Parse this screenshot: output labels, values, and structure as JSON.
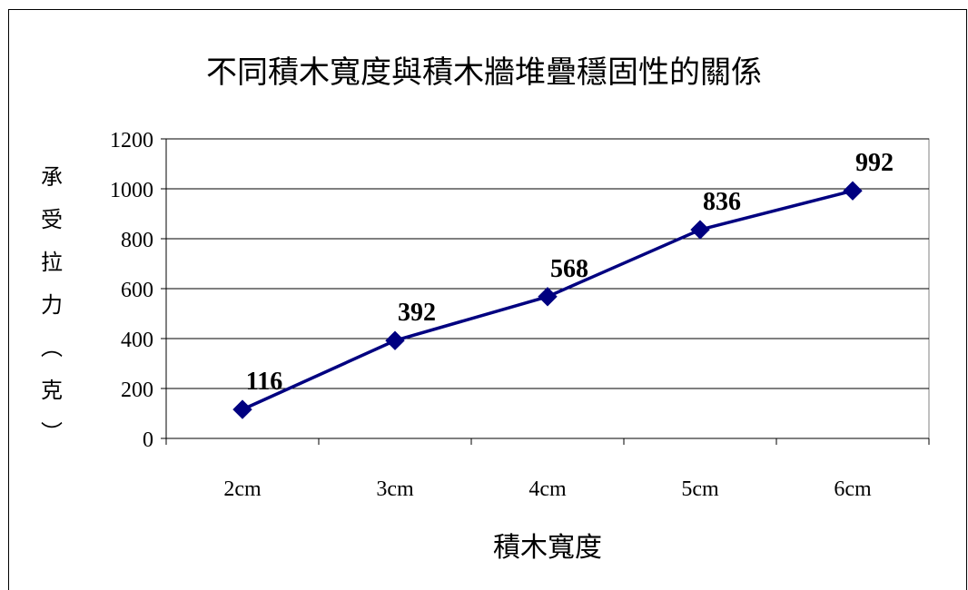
{
  "chart_data": {
    "type": "line",
    "title": "不同積木寬度與積木牆堆疊穩固性的關係",
    "xlabel": "積木寬度",
    "ylabel": "承受拉力（克）",
    "categories": [
      "2cm",
      "3cm",
      "4cm",
      "5cm",
      "6cm"
    ],
    "series": [
      {
        "values": [
          116,
          392,
          568,
          836,
          992
        ],
        "color": "#000080"
      }
    ],
    "ylim": [
      0,
      1200
    ],
    "yticks": [
      0,
      200,
      400,
      600,
      800,
      1000,
      1200
    ],
    "grid": "horizontal",
    "data_labels": true,
    "legend": "none"
  }
}
